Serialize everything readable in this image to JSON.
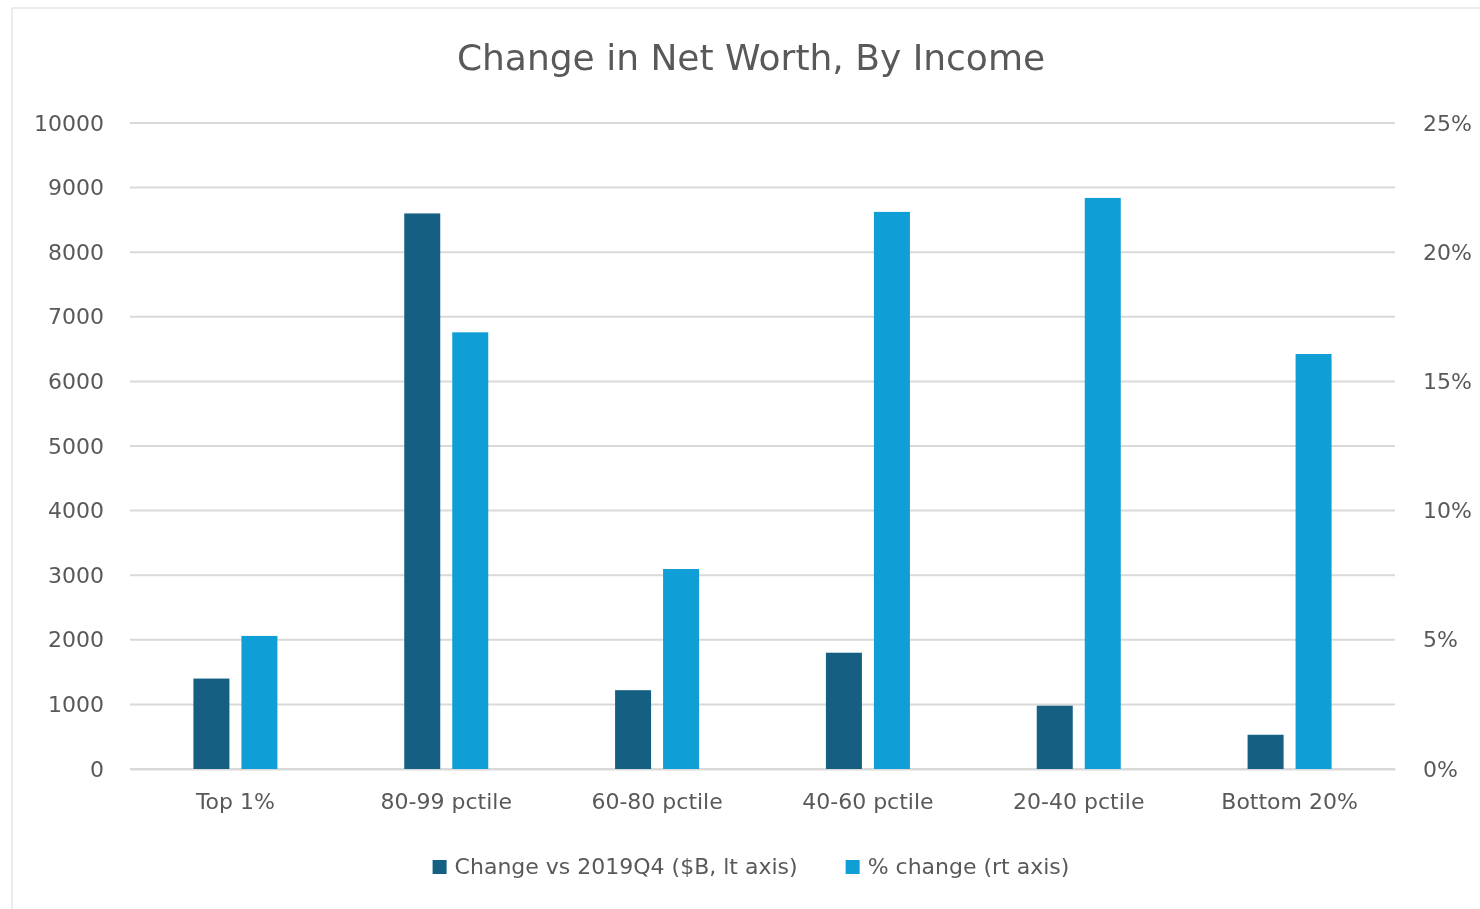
{
  "chart_data": {
    "type": "bar",
    "title": "Change in Net Worth, By Income",
    "categories": [
      "Top 1%",
      "80-99 pctile",
      "60-80 pctile",
      "40-60 pctile",
      "20-40 pctile",
      "Bottom 20%"
    ],
    "series": [
      {
        "name": "Change vs 2019Q4 ($B, lt axis)",
        "color": "#156082",
        "values": [
          1400,
          8600,
          1220,
          1800,
          980,
          530
        ]
      },
      {
        "name": "% change (rt axis)",
        "color": "#0f9ed5",
        "axis": "y2",
        "values": [
          5.15,
          16.9,
          7.74,
          21.56,
          22.1,
          16.06
        ]
      }
    ],
    "ylim": [
      0,
      10000
    ],
    "yticks": [
      0,
      1000,
      2000,
      3000,
      4000,
      5000,
      6000,
      7000,
      8000,
      9000,
      10000
    ],
    "y2lim": [
      0,
      25
    ],
    "y2ticks": [
      {
        "value": 0,
        "label": "0%"
      },
      {
        "value": 5,
        "label": "5%"
      },
      {
        "value": 10,
        "label": "10%"
      },
      {
        "value": 15,
        "label": "15%"
      },
      {
        "value": 20,
        "label": "20%"
      },
      {
        "value": 25,
        "label": "25%"
      }
    ],
    "grid": "y",
    "legend": "bottom"
  }
}
